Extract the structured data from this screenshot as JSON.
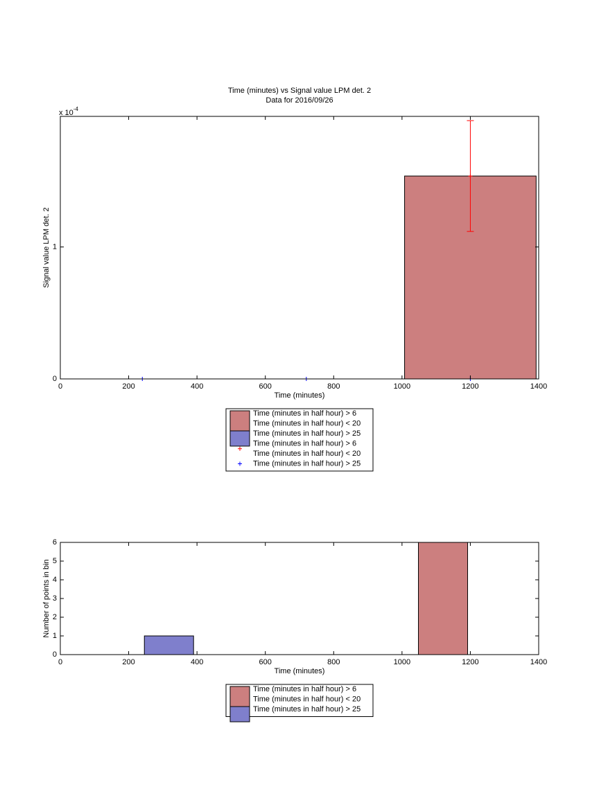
{
  "chart_data": [
    {
      "type": "bar",
      "title": [
        "Time (minutes) vs Signal value LPM det. 2",
        "Data for 2016/09/26"
      ],
      "xlabel": "Time (minutes)",
      "ylabel": "Signal value LPM det. 2",
      "y_multiplier": {
        "base": "x 10",
        "exponent": "-4"
      },
      "xlim": [
        0,
        1400
      ],
      "xticks": [
        0,
        200,
        400,
        600,
        800,
        1000,
        1200,
        1400
      ],
      "ylim": [
        0,
        0.000199
      ],
      "yticks": [
        0,
        {
          "value": 0.0001,
          "label": "1"
        }
      ],
      "legend": "below",
      "series": [
        {
          "name": [
            "Time (minutes in half hour) > 6",
            "Time (minutes in half hour) < 20"
          ],
          "color": "#cc7f7f",
          "x": [
            1200
          ],
          "values": [
            0.0001538
          ],
          "bar_width": 385
        },
        {
          "name": [
            "Time (minutes in half hour) > 25"
          ],
          "color": "#7f7fcc",
          "x": [],
          "values": []
        },
        {
          "name": [
            "Time (minutes in half hour) > 6",
            "Time (minutes in half hour) < 20"
          ],
          "color": "#ff0000",
          "marker": "+",
          "x": [
            1200
          ],
          "values": [
            0.0001538
          ],
          "errors": [
            4.2e-05
          ]
        },
        {
          "name": [
            "Time (minutes in half hour) > 25"
          ],
          "color": "#0000ff",
          "marker": "+",
          "x": [
            240,
            720,
            1200
          ],
          "values": [
            0,
            0,
            0
          ]
        }
      ]
    },
    {
      "type": "histogram",
      "xlabel": "Time (minutes)",
      "ylabel": "Number of points in bin",
      "xlim": [
        0,
        1400
      ],
      "xticks": [
        0,
        200,
        400,
        600,
        800,
        1000,
        1200,
        1400
      ],
      "ylim": [
        0,
        6
      ],
      "yticks": [
        0,
        1,
        2,
        3,
        4,
        5,
        6
      ],
      "legend": "below",
      "series": [
        {
          "name": [
            "Time (minutes in half hour) > 6",
            "Time (minutes in half hour) < 20"
          ],
          "color": "#cc7f7f",
          "bins": [
            1048,
            1192
          ],
          "values": [
            6
          ]
        },
        {
          "name": [
            "Time (minutes in half hour) > 25"
          ],
          "color": "#7f7fcc",
          "bins": [
            246,
            390
          ],
          "values": [
            1
          ]
        }
      ]
    }
  ]
}
